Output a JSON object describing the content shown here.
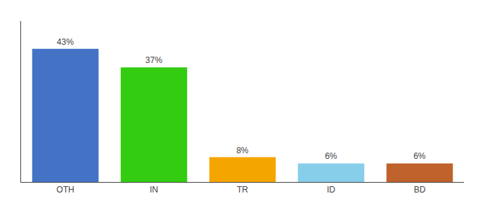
{
  "chart_data": {
    "type": "bar",
    "categories": [
      "OTH",
      "IN",
      "TR",
      "ID",
      "BD"
    ],
    "values": [
      43,
      37,
      8,
      6,
      6
    ],
    "value_labels": [
      "43%",
      "37%",
      "8%",
      "6%",
      "6%"
    ],
    "colors": [
      "#4472c4",
      "#33cc11",
      "#f5a500",
      "#87ceeb",
      "#c0622b"
    ],
    "ylim": [
      0,
      52
    ],
    "grid": false,
    "data_labels": true,
    "tick_labels": "x"
  }
}
